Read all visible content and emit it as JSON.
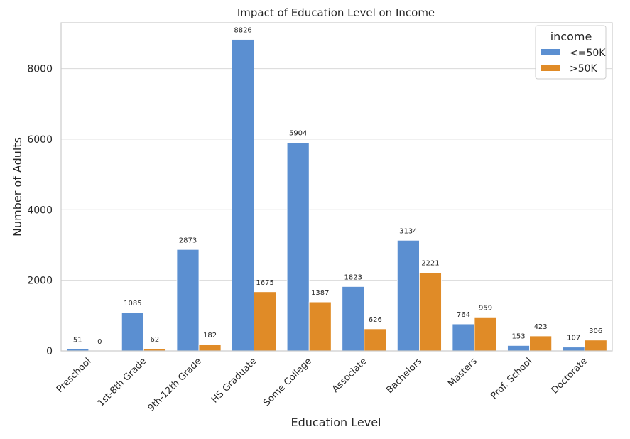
{
  "chart_data": {
    "type": "bar",
    "title": "Impact of Education Level on Income",
    "xlabel": "Education Level",
    "ylabel": "Number of Adults",
    "ylim": [
      0,
      9300
    ],
    "yticks": [
      0,
      2000,
      4000,
      6000,
      8000
    ],
    "grid": true,
    "legend_placement": "top-right",
    "legend_title": "income",
    "categories": [
      "Preschool",
      "1st-8th Grade",
      "9th-12th Grade",
      "HS Graduate",
      "Some College",
      "Associate",
      "Bachelors",
      "Masters",
      "Prof. School",
      "Doctorate"
    ],
    "series": [
      {
        "name": "<=50K",
        "color": "#5b8fd1",
        "values": [
          51,
          1085,
          2873,
          8826,
          5904,
          1823,
          3134,
          764,
          153,
          107
        ]
      },
      {
        "name": ">50K",
        "color": "#e08b27",
        "values": [
          0,
          62,
          182,
          1675,
          1387,
          626,
          2221,
          959,
          423,
          306
        ]
      }
    ]
  }
}
